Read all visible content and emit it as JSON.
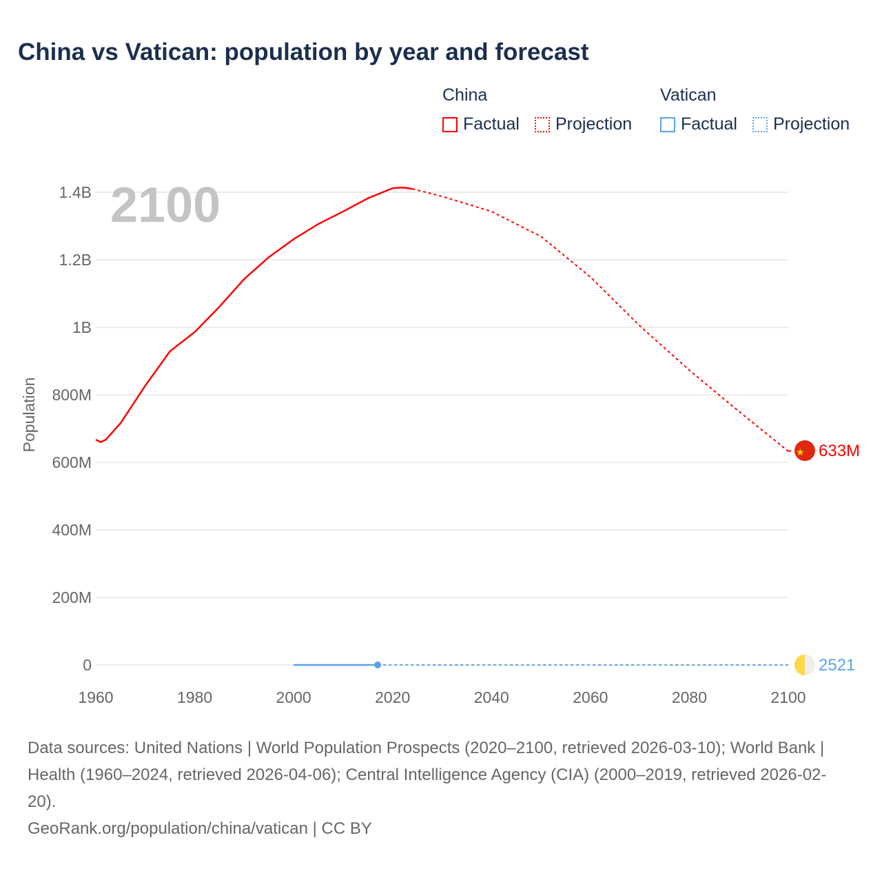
{
  "title": "China vs Vatican: population by year and forecast",
  "legend": {
    "china": {
      "label": "China",
      "factual": "Factual",
      "projection": "Projection",
      "color": "#ff0000"
    },
    "vatican": {
      "label": "Vatican",
      "factual": "Factual",
      "projection": "Projection",
      "color": "#5aa3ea"
    }
  },
  "year_label": "2100",
  "footer": {
    "sources": "Data sources: United Nations | World Population Prospects (2020–2100, retrieved 2026-03-10); World Bank | Health (1960–2024, retrieved 2026-04-06); Central Intelligence Agency (CIA) (2000–2019, retrieved 2026-02-20).",
    "credit": "GeoRank.org/population/china/vatican | CC BY"
  },
  "chart_data": {
    "type": "line",
    "title": "China vs Vatican: population by year and forecast",
    "xlabel": "",
    "ylabel": "Population",
    "xlim": [
      1960,
      2100
    ],
    "ylim": [
      0,
      1400000000
    ],
    "x_ticks": [
      "1960",
      "1980",
      "2000",
      "2020",
      "2040",
      "2060",
      "2080",
      "2100"
    ],
    "y_ticks": [
      {
        "v": 0,
        "l": "0"
      },
      {
        "v": 200000000,
        "l": "200M"
      },
      {
        "v": 400000000,
        "l": "400M"
      },
      {
        "v": 600000000,
        "l": "600M"
      },
      {
        "v": 800000000,
        "l": "800M"
      },
      {
        "v": 1000000000,
        "l": "1B"
      },
      {
        "v": 1200000000,
        "l": "1.2B"
      },
      {
        "v": 1400000000,
        "l": "1.4B"
      }
    ],
    "series": [
      {
        "name": "China",
        "kind": "factual",
        "color": "#ff0000",
        "x": [
          1960,
          1961,
          1962,
          1965,
          1970,
          1975,
          1980,
          1985,
          1990,
          1995,
          2000,
          2005,
          2010,
          2015,
          2020,
          2022,
          2024
        ],
        "y": [
          667,
          660,
          667,
          716,
          827,
          929,
          986,
          1061,
          1143,
          1208,
          1261,
          1306,
          1343,
          1382,
          1412,
          1414,
          1410
        ]
      },
      {
        "name": "China",
        "kind": "projection",
        "color": "#ff0000",
        "x": [
          2024,
          2030,
          2040,
          2050,
          2060,
          2070,
          2080,
          2090,
          2100
        ],
        "y": [
          1410,
          1388,
          1343,
          1269,
          1149,
          1004,
          873,
          751,
          633
        ]
      },
      {
        "name": "Vatican",
        "kind": "factual",
        "color": "#5aa3ea",
        "x": [
          2000,
          2017
        ],
        "y": [
          0.0008,
          0.0008
        ]
      },
      {
        "name": "Vatican",
        "kind": "projection",
        "color": "#5aa3ea",
        "x": [
          2017,
          2100
        ],
        "y": [
          0.0008,
          0.0025
        ]
      }
    ],
    "y_unit_note": "values in millions",
    "end_labels": [
      {
        "series": "China",
        "text": "633M"
      },
      {
        "series": "Vatican",
        "text": "2521"
      }
    ]
  }
}
